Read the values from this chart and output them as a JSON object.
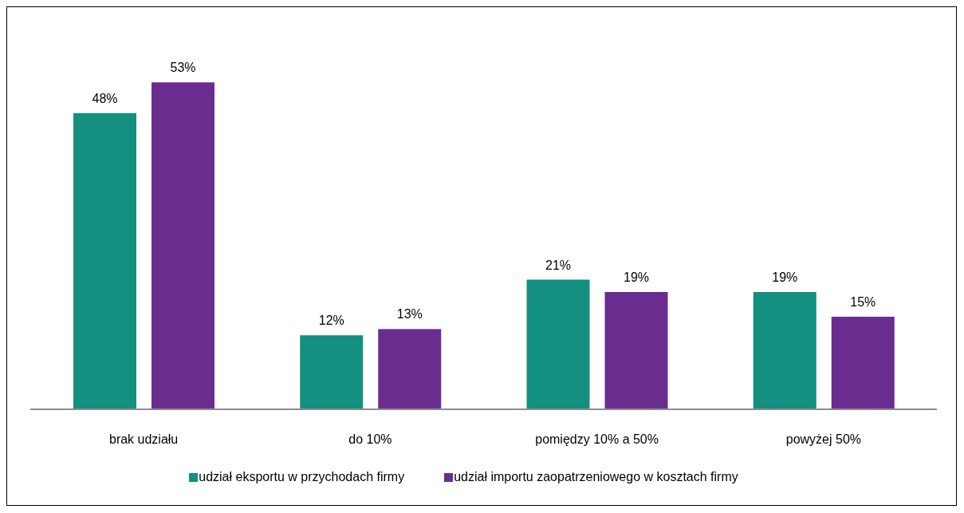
{
  "chart_data": {
    "type": "bar",
    "categories": [
      "brak udziału",
      "do 10%",
      "pomiędzy 10% a 50%",
      "powyżej 50%"
    ],
    "series": [
      {
        "name": "udział eksportu w przychodach firmy",
        "color": "#13907f",
        "values": [
          48,
          12,
          21,
          19
        ],
        "value_labels": [
          "48%",
          "12%",
          "21%",
          "19%"
        ]
      },
      {
        "name": "udział importu zaopatrzeniowego w kosztach firmy",
        "color": "#6a2c8f",
        "values": [
          53,
          13,
          19,
          15
        ],
        "value_labels": [
          "53%",
          "13%",
          "19%",
          "15%"
        ]
      }
    ],
    "legend": "bottom"
  }
}
